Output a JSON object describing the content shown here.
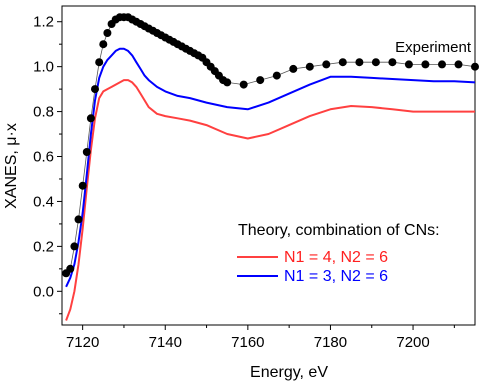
{
  "chart_data": {
    "type": "line",
    "title": "",
    "xlabel": "Energy, eV",
    "ylabel": "XANES, μ·x",
    "xlim": [
      7115,
      7215
    ],
    "ylim": [
      -0.15,
      1.27
    ],
    "x_ticks": [
      7120,
      7140,
      7160,
      7180,
      7200
    ],
    "y_ticks": [
      0.0,
      0.2,
      0.4,
      0.6,
      0.8,
      1.0,
      1.2
    ],
    "x_tick_labels": [
      "7120",
      "7140",
      "7160",
      "7180",
      "7200"
    ],
    "y_tick_labels": [
      "0.0",
      "0.2",
      "0.4",
      "0.6",
      "0.8",
      "1.0",
      "1.2"
    ],
    "grid": false,
    "annotation": "Experiment",
    "legend": {
      "title": "Theory, combination of CNs:",
      "placement": "bottom-right",
      "entries": [
        {
          "label": "N1 = 4, N2 = 6",
          "color": "#ff4040"
        },
        {
          "label": "N1 = 3, N2 = 6",
          "color": "#0000ff"
        }
      ]
    },
    "series": [
      {
        "name": "Experiment",
        "style": "markers+line",
        "color": "#000000",
        "x": [
          7116,
          7117,
          7118,
          7119,
          7120,
          7121,
          7122,
          7123,
          7124,
          7125,
          7126,
          7127,
          7128,
          7129,
          7130,
          7131,
          7132,
          7133,
          7134,
          7135,
          7136,
          7137,
          7138,
          7139,
          7140,
          7141,
          7142,
          7143,
          7144,
          7145,
          7146,
          7147,
          7148,
          7149,
          7150,
          7151,
          7152,
          7153,
          7154,
          7155,
          7159,
          7163,
          7167,
          7171,
          7175,
          7179,
          7183,
          7187,
          7191,
          7195,
          7199,
          7203,
          7207,
          7211,
          7215
        ],
        "y": [
          0.08,
          0.1,
          0.2,
          0.32,
          0.47,
          0.62,
          0.77,
          0.9,
          1.02,
          1.1,
          1.15,
          1.19,
          1.21,
          1.22,
          1.22,
          1.22,
          1.21,
          1.2,
          1.19,
          1.18,
          1.17,
          1.16,
          1.15,
          1.14,
          1.13,
          1.12,
          1.11,
          1.1,
          1.09,
          1.08,
          1.07,
          1.06,
          1.05,
          1.04,
          1.02,
          1.0,
          0.98,
          0.96,
          0.94,
          0.93,
          0.92,
          0.94,
          0.96,
          0.99,
          1.0,
          1.01,
          1.02,
          1.02,
          1.02,
          1.02,
          1.01,
          1.01,
          1.01,
          1.01,
          1.0
        ]
      },
      {
        "name": "N1 = 3, N2 = 6",
        "style": "line",
        "color": "#0000ff",
        "x": [
          7116,
          7117,
          7118,
          7119,
          7120,
          7121,
          7122,
          7123,
          7124,
          7125,
          7126,
          7127,
          7128,
          7129,
          7130,
          7131,
          7132,
          7133,
          7134,
          7135,
          7136,
          7138,
          7140,
          7143,
          7146,
          7150,
          7155,
          7160,
          7165,
          7170,
          7175,
          7180,
          7185,
          7190,
          7195,
          7200,
          7205,
          7210,
          7215
        ],
        "y": [
          0.02,
          0.06,
          0.12,
          0.22,
          0.35,
          0.52,
          0.7,
          0.85,
          0.95,
          1.0,
          1.03,
          1.05,
          1.07,
          1.08,
          1.08,
          1.07,
          1.05,
          1.02,
          0.99,
          0.96,
          0.94,
          0.91,
          0.89,
          0.87,
          0.86,
          0.84,
          0.82,
          0.81,
          0.84,
          0.88,
          0.92,
          0.955,
          0.955,
          0.95,
          0.945,
          0.94,
          0.935,
          0.935,
          0.93
        ]
      },
      {
        "name": "N1 = 4, N2 = 6",
        "style": "line",
        "color": "#ff4040",
        "x": [
          7116,
          7117,
          7118,
          7119,
          7120,
          7121,
          7122,
          7123,
          7124,
          7125,
          7126,
          7127,
          7128,
          7129,
          7130,
          7131,
          7132,
          7133,
          7134,
          7136,
          7138,
          7140,
          7143,
          7146,
          7150,
          7155,
          7160,
          7165,
          7170,
          7175,
          7180,
          7185,
          7190,
          7195,
          7200,
          7205,
          7210,
          7215
        ],
        "y": [
          -0.13,
          -0.08,
          0.0,
          0.12,
          0.28,
          0.46,
          0.63,
          0.77,
          0.86,
          0.89,
          0.9,
          0.91,
          0.92,
          0.93,
          0.94,
          0.94,
          0.93,
          0.91,
          0.88,
          0.82,
          0.79,
          0.78,
          0.77,
          0.76,
          0.74,
          0.7,
          0.68,
          0.7,
          0.74,
          0.78,
          0.81,
          0.825,
          0.82,
          0.81,
          0.8,
          0.8,
          0.8,
          0.8
        ]
      }
    ]
  }
}
